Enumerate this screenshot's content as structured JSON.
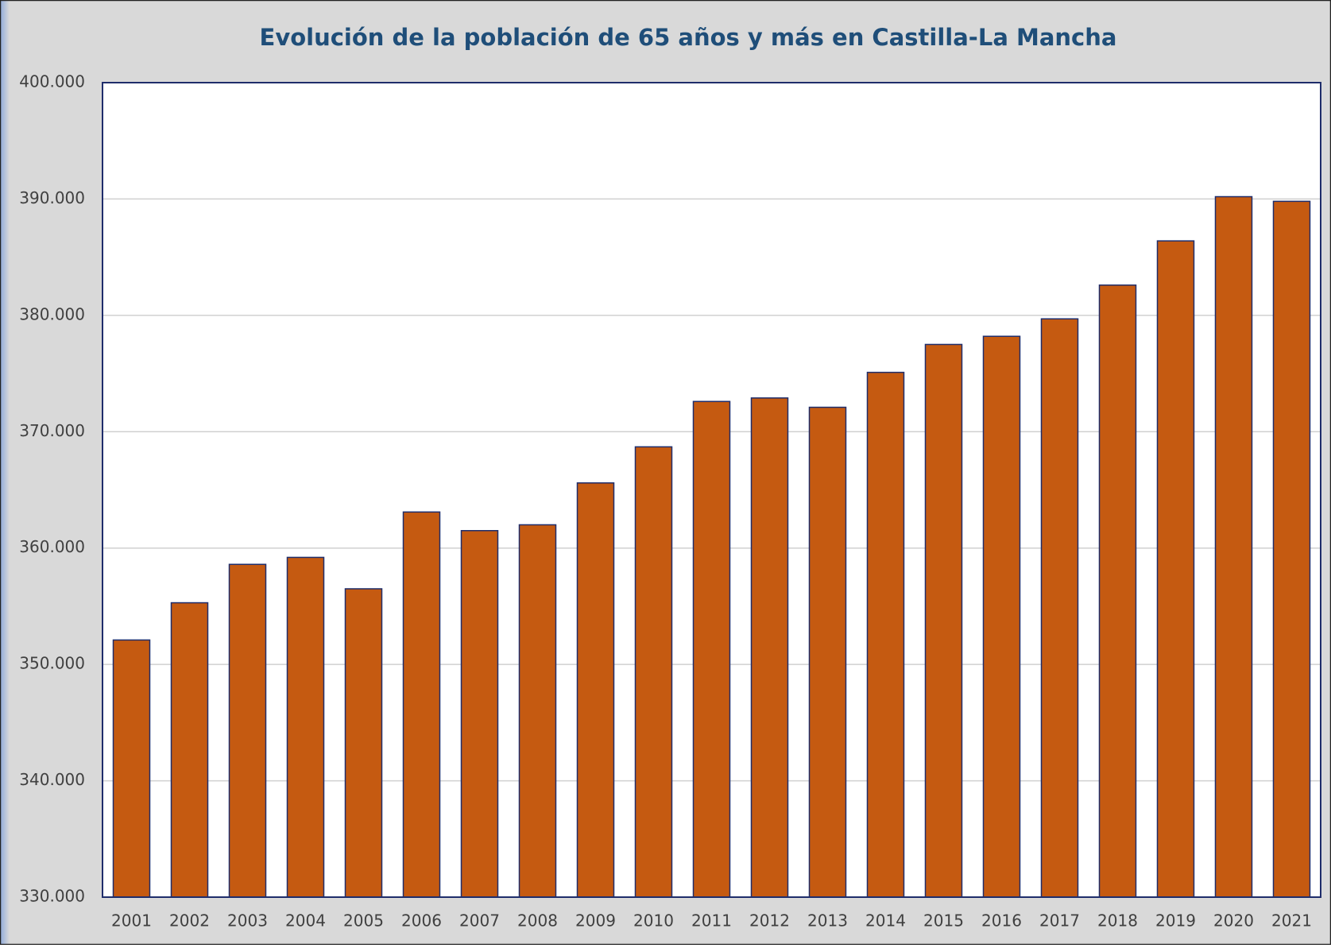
{
  "chart_data": {
    "type": "bar",
    "title": "Evolución de la población de 65 años y más en Castilla-La Mancha",
    "categories": [
      "2001",
      "2002",
      "2003",
      "2004",
      "2005",
      "2006",
      "2007",
      "2008",
      "2009",
      "2010",
      "2011",
      "2012",
      "2013",
      "2014",
      "2015",
      "2016",
      "2017",
      "2018",
      "2019",
      "2020",
      "2021"
    ],
    "values": [
      352100,
      355300,
      358600,
      359200,
      356500,
      363100,
      361500,
      362000,
      365600,
      368700,
      372600,
      372900,
      372100,
      375100,
      377500,
      378200,
      379700,
      382600,
      386400,
      390200,
      389800
    ],
    "color": "#c55a11",
    "ylim": [
      330000,
      400000
    ],
    "yticks": [
      {
        "value": 330000,
        "label": "330.000"
      },
      {
        "value": 340000,
        "label": "340.000"
      },
      {
        "value": 350000,
        "label": "350.000"
      },
      {
        "value": 360000,
        "label": "360.000"
      },
      {
        "value": 370000,
        "label": "370.000"
      },
      {
        "value": 380000,
        "label": "380.000"
      },
      {
        "value": 390000,
        "label": "390.000"
      },
      {
        "value": 400000,
        "label": "400.000"
      }
    ],
    "grid": true
  }
}
